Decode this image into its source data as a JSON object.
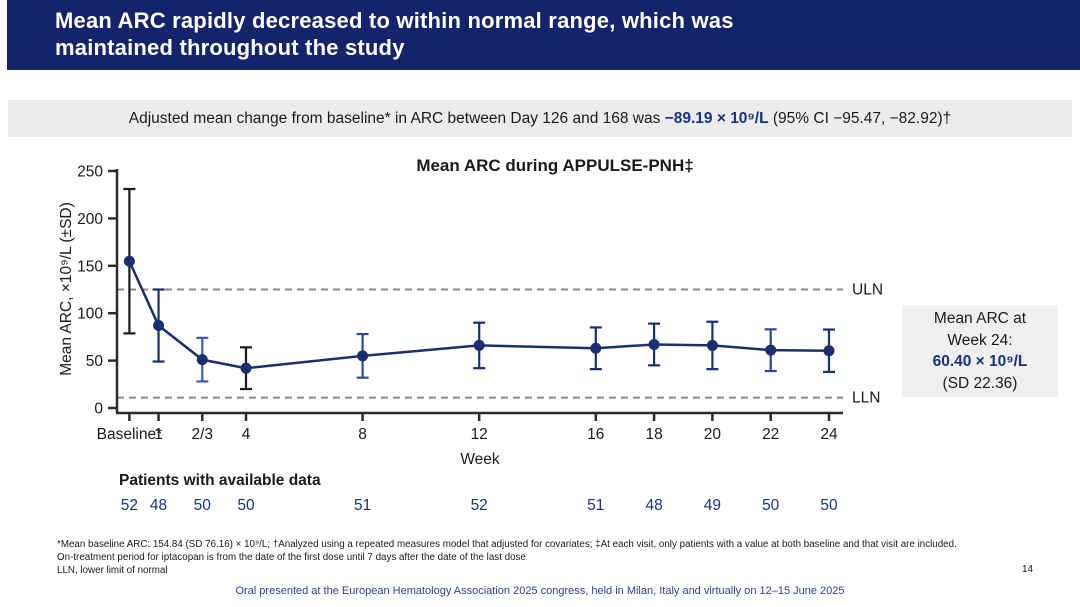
{
  "colors": {
    "header_bg": "#14246a",
    "subtitle_bg": "#ececec",
    "highlight_blue": "#17337f",
    "line_navy": "#1a2f6d",
    "axis_dark": "#2b2b2b",
    "dashed_gray": "#8a8a8a",
    "footer_blue": "#2b3f9e",
    "box_bg": "#efefef"
  },
  "header": {
    "title_line1": "Mean ARC rapidly decreased to within normal range, which was",
    "title_line2": "maintained throughout the study"
  },
  "subtitle": {
    "prefix": "Adjusted mean change from baseline* in ARC between Day 126 and 168 was ",
    "highlight": "−89.19 × 10⁹/L",
    "suffix": " (95% CI −95.47, −82.92)†"
  },
  "chart_data": {
    "type": "line",
    "title": "Mean ARC during APPULSE-PNH‡",
    "xlabel": "Week",
    "ylabel": "Mean ARC, ×10⁹/L (±SD)",
    "ylim": [
      0,
      250
    ],
    "yticks": [
      0,
      50,
      100,
      150,
      200,
      250
    ],
    "grid": false,
    "legend": false,
    "categories": [
      "Baseline*",
      "1",
      "2/3",
      "4",
      "8",
      "12",
      "16",
      "18",
      "20",
      "22",
      "24"
    ],
    "weeks": [
      0,
      1,
      2.5,
      4,
      8,
      12,
      16,
      18,
      20,
      22,
      24
    ],
    "series": [
      {
        "name": "Mean ARC (±SD)",
        "means": [
          154.84,
          87,
          51,
          42,
          55,
          66,
          63,
          67,
          66,
          61,
          60.4
        ],
        "sds": [
          76.16,
          38,
          23,
          22,
          23,
          24,
          22,
          22,
          25,
          22,
          22.36
        ],
        "bar_colors": [
          "#1a1a1a",
          "#1a2f6d",
          "#3a5bbd",
          "#1a1a1a",
          "#2c4795",
          "#1a2f6d",
          "#1a2f6d",
          "#1a2f6d",
          "#1a2f6d",
          "#2c4795",
          "#1a2f6d"
        ]
      }
    ],
    "uln": 125,
    "lln": 11,
    "uln_label": "ULN",
    "lln_label": "LLN",
    "patients_label": "Patients with available data",
    "patients": [
      "52",
      "48",
      "50",
      "50",
      "51",
      "52",
      "51",
      "48",
      "49",
      "50",
      "50"
    ]
  },
  "annotation_box": {
    "line1": "Mean ARC at",
    "line2": "Week 24:",
    "value": "60.40 × 10⁹/L",
    "sd": "(SD 22.36)"
  },
  "footnotes": [
    "*Mean baseline ARC: 154.84 (SD 76.16) × 10⁹/L; †Analyzed using a repeated measures model that adjusted for covariates; ‡At each visit, only patients with a value at both baseline and that visit are included.",
    "On-treatment period for iptacopan is from the date of the first dose until 7 days after the date of the last dose",
    "LLN, lower limit of normal"
  ],
  "page_number": "14",
  "footer": {
    "text": "Oral presented at the European Hematology Association 2025 congress, held in Milan, Italy and virtually on 12–15 June 2025"
  }
}
